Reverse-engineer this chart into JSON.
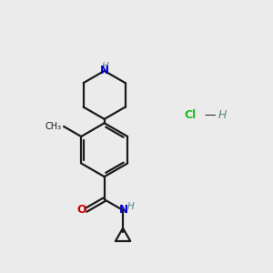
{
  "background_color": "#ebebeb",
  "bond_color": "#1a1a1a",
  "N_color": "#0000cc",
  "O_color": "#cc0000",
  "Cl_color": "#22bb22",
  "H_color": "#558888",
  "figsize": [
    3.0,
    3.0
  ],
  "dpi": 100,
  "xlim": [
    0,
    10
  ],
  "ylim": [
    0,
    10
  ]
}
